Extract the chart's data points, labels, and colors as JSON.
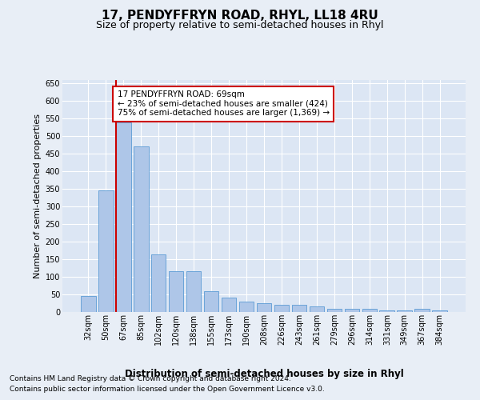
{
  "title": "17, PENDYFFRYN ROAD, RHYL, LL18 4RU",
  "subtitle": "Size of property relative to semi-detached houses in Rhyl",
  "xlabel": "Distribution of semi-detached houses by size in Rhyl",
  "ylabel": "Number of semi-detached properties",
  "categories": [
    "32sqm",
    "50sqm",
    "67sqm",
    "85sqm",
    "102sqm",
    "120sqm",
    "138sqm",
    "155sqm",
    "173sqm",
    "190sqm",
    "208sqm",
    "226sqm",
    "243sqm",
    "261sqm",
    "279sqm",
    "296sqm",
    "314sqm",
    "331sqm",
    "349sqm",
    "367sqm",
    "384sqm"
  ],
  "values": [
    45,
    345,
    540,
    470,
    165,
    115,
    115,
    60,
    40,
    30,
    25,
    20,
    20,
    15,
    10,
    10,
    10,
    5,
    5,
    8,
    5
  ],
  "bar_color": "#aec6e8",
  "bar_edge_color": "#5b9bd5",
  "highlight_line_index": 2,
  "highlight_line_color": "#cc0000",
  "annotation_text": "17 PENDYFFRYN ROAD: 69sqm\n← 23% of semi-detached houses are smaller (424)\n75% of semi-detached houses are larger (1,369) →",
  "annotation_box_color": "#ffffff",
  "annotation_box_edge_color": "#cc0000",
  "background_color": "#e8eef6",
  "plot_background_color": "#dce6f4",
  "ylim": [
    0,
    660
  ],
  "yticks": [
    0,
    50,
    100,
    150,
    200,
    250,
    300,
    350,
    400,
    450,
    500,
    550,
    600,
    650
  ],
  "footer_line1": "Contains HM Land Registry data © Crown copyright and database right 2024.",
  "footer_line2": "Contains public sector information licensed under the Open Government Licence v3.0.",
  "title_fontsize": 11,
  "subtitle_fontsize": 9,
  "xlabel_fontsize": 8.5,
  "ylabel_fontsize": 8,
  "tick_fontsize": 7,
  "annotation_fontsize": 7.5,
  "footer_fontsize": 6.5
}
